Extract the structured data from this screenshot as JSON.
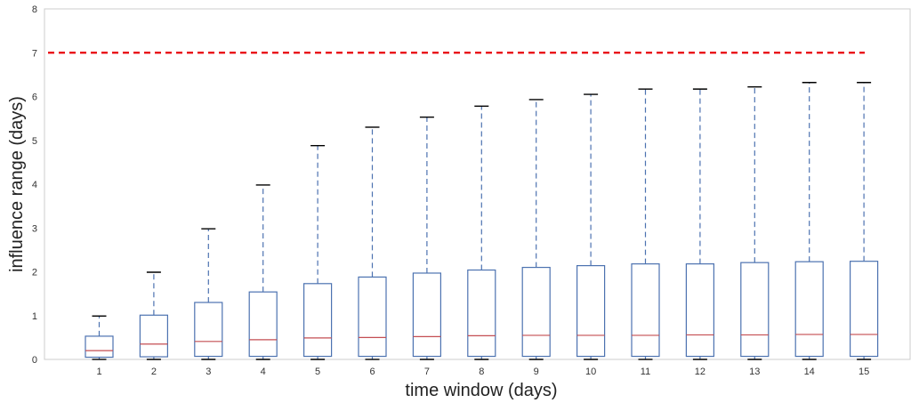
{
  "chart_data": {
    "type": "boxplot",
    "xlabel": "time window (days)",
    "ylabel": "influence range (days)",
    "ylim": [
      0,
      8
    ],
    "yticks": [
      "0",
      "1",
      "2",
      "3",
      "4",
      "5",
      "6",
      "7",
      "8"
    ],
    "grid": false,
    "reference_line": {
      "y": 7,
      "color": "#e8000b",
      "style": "dashed"
    },
    "colors": {
      "box": "#4c72b0",
      "median": "#c44e52",
      "cap": "#000000"
    },
    "categories": [
      "1",
      "2",
      "3",
      "4",
      "5",
      "6",
      "7",
      "8",
      "9",
      "10",
      "11",
      "12",
      "13",
      "14",
      "15"
    ],
    "boxes": [
      {
        "category": "1",
        "whisker_low": 0.0,
        "q1": 0.05,
        "median": 0.2,
        "q3": 0.53,
        "whisker_high": 0.99
      },
      {
        "category": "2",
        "whisker_low": 0.0,
        "q1": 0.06,
        "median": 0.35,
        "q3": 1.01,
        "whisker_high": 1.99
      },
      {
        "category": "3",
        "whisker_low": 0.0,
        "q1": 0.07,
        "median": 0.41,
        "q3": 1.3,
        "whisker_high": 2.98
      },
      {
        "category": "4",
        "whisker_low": 0.0,
        "q1": 0.07,
        "median": 0.45,
        "q3": 1.54,
        "whisker_high": 3.98
      },
      {
        "category": "5",
        "whisker_low": 0.0,
        "q1": 0.07,
        "median": 0.49,
        "q3": 1.73,
        "whisker_high": 4.88
      },
      {
        "category": "6",
        "whisker_low": 0.0,
        "q1": 0.07,
        "median": 0.5,
        "q3": 1.88,
        "whisker_high": 5.3
      },
      {
        "category": "7",
        "whisker_low": 0.0,
        "q1": 0.07,
        "median": 0.52,
        "q3": 1.97,
        "whisker_high": 5.53
      },
      {
        "category": "8",
        "whisker_low": 0.0,
        "q1": 0.07,
        "median": 0.54,
        "q3": 2.04,
        "whisker_high": 5.78
      },
      {
        "category": "9",
        "whisker_low": 0.0,
        "q1": 0.07,
        "median": 0.55,
        "q3": 2.1,
        "whisker_high": 5.93
      },
      {
        "category": "10",
        "whisker_low": 0.0,
        "q1": 0.07,
        "median": 0.55,
        "q3": 2.14,
        "whisker_high": 6.05
      },
      {
        "category": "11",
        "whisker_low": 0.0,
        "q1": 0.07,
        "median": 0.55,
        "q3": 2.18,
        "whisker_high": 6.17
      },
      {
        "category": "12",
        "whisker_low": 0.0,
        "q1": 0.07,
        "median": 0.56,
        "q3": 2.18,
        "whisker_high": 6.17
      },
      {
        "category": "13",
        "whisker_low": 0.0,
        "q1": 0.07,
        "median": 0.56,
        "q3": 2.21,
        "whisker_high": 6.22
      },
      {
        "category": "14",
        "whisker_low": 0.0,
        "q1": 0.07,
        "median": 0.57,
        "q3": 2.23,
        "whisker_high": 6.32
      },
      {
        "category": "15",
        "whisker_low": 0.0,
        "q1": 0.07,
        "median": 0.57,
        "q3": 2.24,
        "whisker_high": 6.32
      }
    ]
  }
}
